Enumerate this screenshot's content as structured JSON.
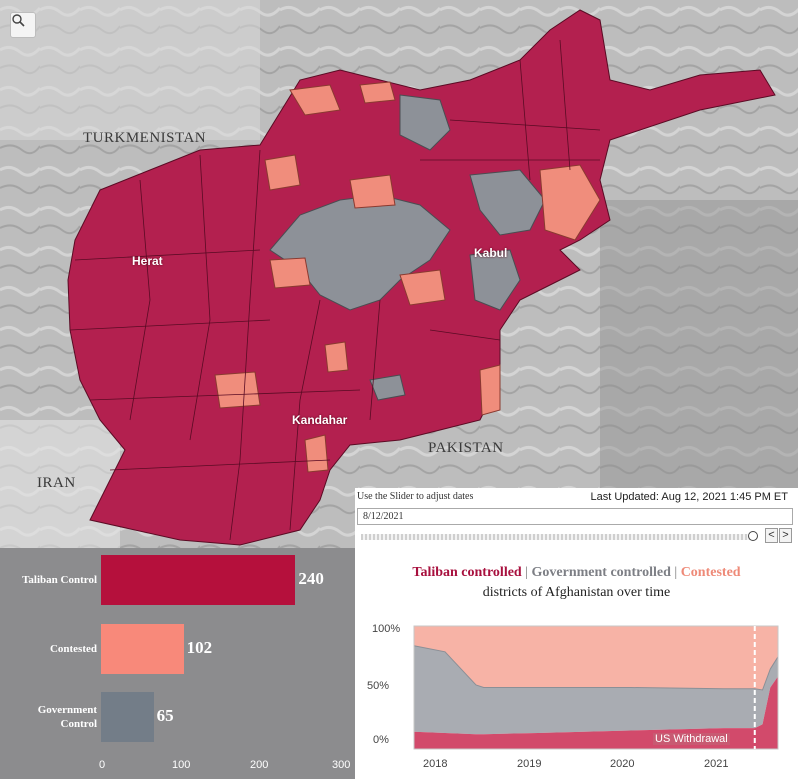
{
  "map": {
    "search_icon": "search-icon",
    "country_labels": [
      "TURKMENISTAN",
      "IRAN",
      "PAKISTAN"
    ],
    "city_labels": [
      "Herat",
      "Kabul",
      "Kandahar"
    ],
    "colors": {
      "taliban": "#b3204f",
      "government": "#8d9198",
      "contested": "#f08d7c",
      "terrain": "#b9b9b9"
    }
  },
  "slider": {
    "hint": "Use the Slider to adjust dates",
    "last_updated": "Last Updated: Aug 12, 2021 1:45 PM ET",
    "date_value": "8/12/2021",
    "prev_label": "<",
    "next_label": ">"
  },
  "title": {
    "taliban": "Taliban controlled",
    "sep1": " | ",
    "government": "Government controlled",
    "sep2": " | ",
    "contested": "Contested",
    "subtitle": "districts of Afghanistan over time"
  },
  "chart_data": [
    {
      "type": "bar",
      "orientation": "horizontal",
      "categories": [
        "Taliban Control",
        "Contested",
        "Government Control"
      ],
      "category_lines": [
        [
          "Taliban Control"
        ],
        [
          "Contested"
        ],
        [
          "Government",
          "Control"
        ]
      ],
      "values": [
        240,
        102,
        65
      ],
      "colors": [
        "#b5103c",
        "#f8897a",
        "#737d88"
      ],
      "xlim": [
        0,
        300
      ],
      "x_ticks": [
        "0",
        "100",
        "200",
        "300"
      ]
    },
    {
      "type": "area",
      "stacked": "percent",
      "x": [
        "2017-09",
        "2018-01",
        "2018-05",
        "2018-06",
        "2019-01",
        "2020-01",
        "2021-01",
        "2021-05",
        "2021-06",
        "2021-07",
        "2021-08"
      ],
      "series": [
        {
          "name": "Taliban controlled",
          "color": "#d24a6b",
          "values": [
            14,
            13,
            12,
            12,
            13,
            15,
            17,
            17,
            20,
            50,
            59
          ]
        },
        {
          "name": "Government controlled",
          "color": "#a9acb2",
          "values": [
            70,
            66,
            40,
            38,
            37,
            35,
            32,
            32,
            28,
            15,
            16
          ]
        },
        {
          "name": "Contested",
          "color": "#f7b3a6",
          "values": [
            16,
            21,
            48,
            50,
            50,
            50,
            51,
            51,
            52,
            35,
            25
          ]
        }
      ],
      "y_ticks": [
        "0%",
        "50%",
        "100%"
      ],
      "x_ticks": [
        "2018",
        "2019",
        "2020",
        "2021"
      ],
      "annotation": "US Withdrawal",
      "annotation_x": "2021-05"
    }
  ]
}
